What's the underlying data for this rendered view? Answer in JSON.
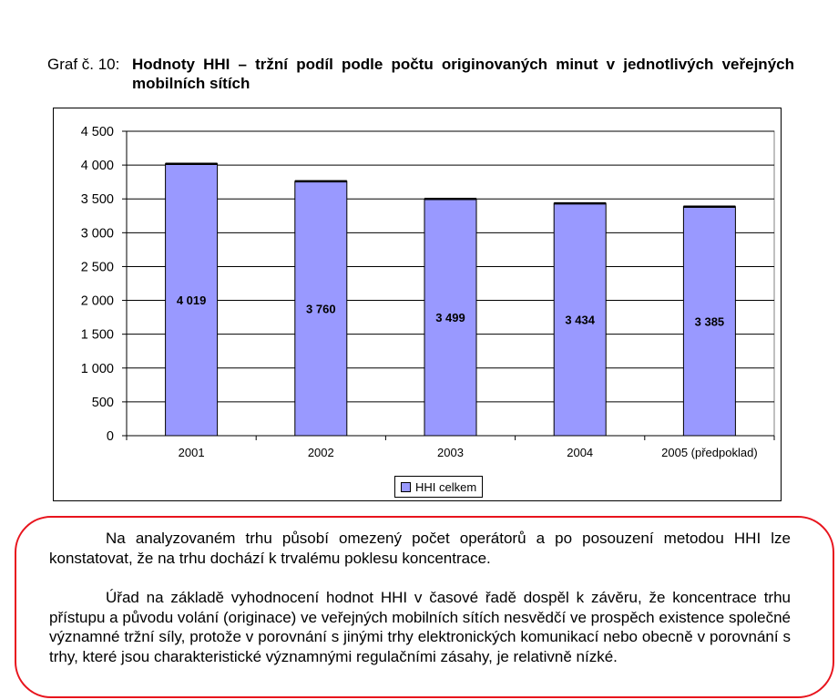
{
  "caption": {
    "label": "Graf č. 10:",
    "title": "Hodnoty HHI – tržní podíl podle počtu originovaných minut v jednotlivých veřejných mobilních sítích"
  },
  "chart_data": {
    "type": "bar",
    "categories": [
      "2001",
      "2002",
      "2003",
      "2004",
      "2005 (předpoklad)"
    ],
    "series": [
      {
        "name": "HHI celkem",
        "values": [
          4019,
          3760,
          3499,
          3434,
          3385
        ]
      }
    ],
    "data_labels": [
      "4 019",
      "3 760",
      "3 499",
      "3 434",
      "3 385"
    ],
    "y_ticks": [
      0,
      500,
      1000,
      1500,
      2000,
      2500,
      3000,
      3500,
      4000,
      4500
    ],
    "y_tick_labels": [
      "0",
      "500",
      "1 000",
      "1 500",
      "2 000",
      "2 500",
      "3 000",
      "3 500",
      "4 000",
      "4 500"
    ],
    "ylim": [
      0,
      4500
    ],
    "grid": true,
    "legend_position": "bottom",
    "bar_color": "#9999ff",
    "plot_background": "#ffffff"
  },
  "paragraphs": [
    "Na analyzovaném trhu působí omezený počet operátorů a po posouzení metodou HHI lze konstatovat, že na trhu dochází k trvalému poklesu koncentrace.",
    "Úřad na základě vyhodnocení hodnot HHI v časové řadě dospěl k závěru, že koncentrace trhu přístupu a původu volání (originace) ve veřejných mobilních sítích nesvědčí ve prospěch existence společné významné tržní síly, protože v porovnání s jinými trhy elektronických komunikací nebo obecně v porovnání s trhy, které jsou charakteristické významnými regulačními zásahy, je relativně nízké."
  ],
  "note_border_color": "#e8141d"
}
